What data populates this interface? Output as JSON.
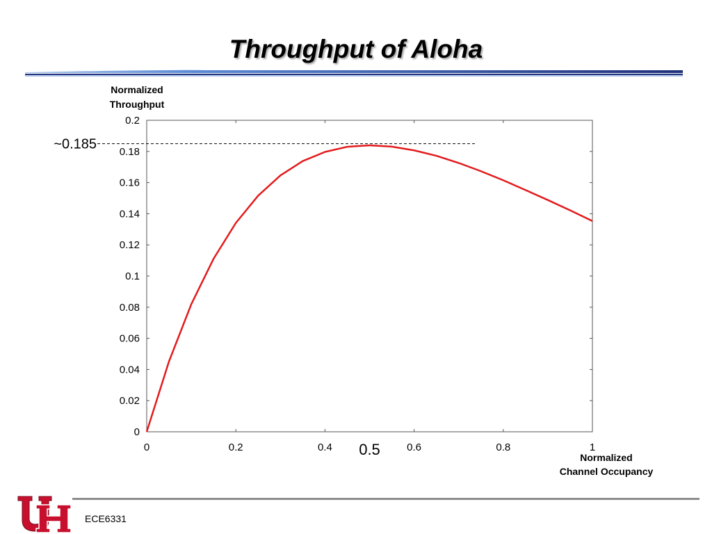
{
  "slide": {
    "title": "Throughput of Aloha",
    "footer": "ECE6331",
    "logo_text": "UH",
    "colors": {
      "title_rule_dark": "#1f2f7a",
      "title_rule_light": "#5b8ad6",
      "curve": "#e31a1c",
      "footer_rule": "#8c8c8c",
      "logo_red": "#c8102e"
    }
  },
  "chart_data": {
    "type": "line",
    "ylabel": "Normalized Throughput",
    "xlabel": "Normalized Channel Occupancy",
    "xlim": [
      0,
      1
    ],
    "ylim": [
      0,
      0.2
    ],
    "x_ticks": [
      "0",
      "0.2",
      "0.4",
      "0.6",
      "0.8",
      "1"
    ],
    "y_ticks": [
      "0",
      "0.02",
      "0.04",
      "0.06",
      "0.08",
      "0.1",
      "0.12",
      "0.14",
      "0.16",
      "0.18",
      "0.2"
    ],
    "grid": false,
    "series": [
      {
        "x": [
          0,
          0.05,
          0.1,
          0.15,
          0.2,
          0.25,
          0.3,
          0.35,
          0.4,
          0.45,
          0.5,
          0.55,
          0.6,
          0.65,
          0.7,
          0.75,
          0.8,
          0.85,
          0.9,
          0.95,
          1.0
        ],
        "y": [
          0,
          0.0452,
          0.0819,
          0.1111,
          0.1341,
          0.1516,
          0.1646,
          0.1738,
          0.1797,
          0.183,
          0.1839,
          0.1831,
          0.1807,
          0.1772,
          0.1726,
          0.1673,
          0.1615,
          0.1552,
          0.1488,
          0.1422,
          0.1353
        ],
        "color": "#e31a1c"
      }
    ],
    "annotations": [
      {
        "text": "~0.185",
        "x": 0,
        "y": 0.185
      },
      {
        "text": "0.5",
        "x": 0.5,
        "y": 0
      }
    ],
    "reference_line": {
      "y": 0.185,
      "x_end": 0.74,
      "style": "dashed"
    }
  }
}
